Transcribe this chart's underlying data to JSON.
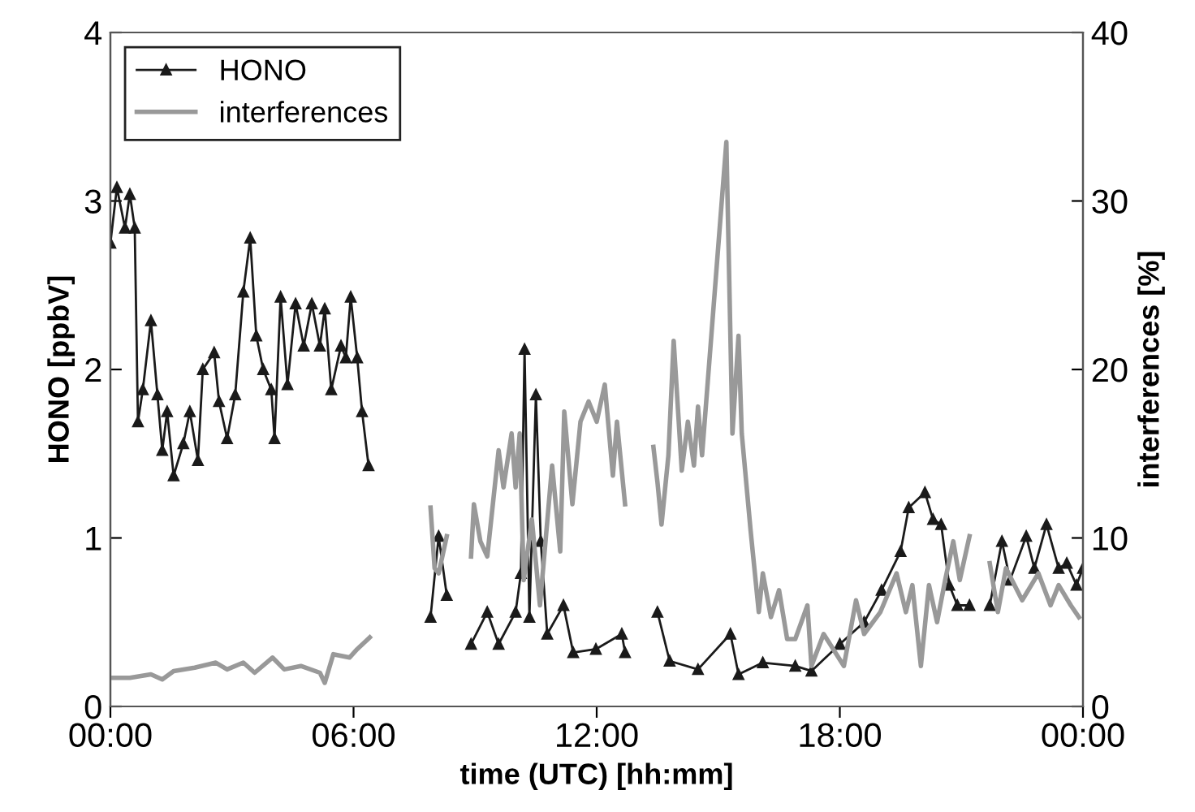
{
  "chart_data": {
    "type": "line",
    "xlabel": "time (UTC) [hh:mm]",
    "ylabel": "HONO [ppbV]",
    "y2label": "interferences [%]",
    "xlim": [
      0,
      24
    ],
    "xticks": [
      {
        "value": 0,
        "label": "00:00"
      },
      {
        "value": 6,
        "label": "06:00"
      },
      {
        "value": 12,
        "label": "12:00"
      },
      {
        "value": 18,
        "label": "18:00"
      },
      {
        "value": 24,
        "label": "00:00"
      }
    ],
    "ylim": [
      0,
      4
    ],
    "yticks": [
      0,
      1,
      2,
      3,
      4
    ],
    "y2lim": [
      0,
      40
    ],
    "y2ticks": [
      0,
      10,
      20,
      30,
      40
    ],
    "legend": "top left",
    "grid": false,
    "series": [
      {
        "name": "HONO",
        "color": "#1a1a1a",
        "marker": "triangle",
        "x": [
          0,
          0.16,
          0.36,
          0.48,
          0.6,
          0.68,
          0.8,
          1.0,
          1.16,
          1.28,
          1.4,
          1.56,
          1.8,
          1.96,
          2.16,
          2.28,
          2.56,
          2.68,
          2.88,
          3.08,
          3.28,
          3.45,
          3.6,
          3.77,
          3.97,
          4.05,
          4.2,
          4.37,
          4.57,
          4.77,
          4.97,
          5.17,
          5.29,
          5.45,
          5.69,
          5.81,
          5.93,
          6.09,
          6.21,
          6.37,
          7.1,
          7.9,
          8.1,
          8.3,
          8.6,
          8.9,
          9.3,
          9.58,
          10.0,
          10.13,
          10.22,
          10.34,
          10.5,
          10.62,
          10.78,
          11.18,
          11.42,
          11.98,
          12.62,
          12.7,
          13.1,
          13.5,
          13.8,
          14.5,
          15.3,
          15.5,
          16.1,
          16.9,
          17.3,
          18.0,
          18.6,
          19.03,
          19.5,
          19.7,
          20.1,
          20.3,
          20.5,
          20.7,
          20.9,
          21.2,
          21.45,
          21.7,
          22.0,
          22.2,
          22.6,
          22.8,
          23.1,
          23.4,
          23.6,
          23.84,
          24
        ],
        "values": [
          2.75,
          3.08,
          2.84,
          3.04,
          2.84,
          1.69,
          1.88,
          2.29,
          1.85,
          1.52,
          1.75,
          1.37,
          1.56,
          1.75,
          1.46,
          2.0,
          2.1,
          1.81,
          1.59,
          1.85,
          2.46,
          2.78,
          2.2,
          2.0,
          1.88,
          1.59,
          2.43,
          1.91,
          2.39,
          2.14,
          2.39,
          2.14,
          2.36,
          1.88,
          2.14,
          2.07,
          2.43,
          2.07,
          1.75,
          1.43,
          null,
          0.53,
          1.01,
          0.66,
          null,
          0.37,
          0.56,
          0.37,
          0.56,
          0.79,
          2.12,
          0.53,
          1.85,
          0.98,
          0.43,
          0.6,
          0.32,
          0.34,
          0.43,
          0.32,
          null,
          0.56,
          0.27,
          0.22,
          0.43,
          0.19,
          0.26,
          0.24,
          0.21,
          0.37,
          0.5,
          0.69,
          0.92,
          1.18,
          1.27,
          1.11,
          1.08,
          0.72,
          0.6,
          0.6,
          null,
          0.6,
          0.98,
          0.75,
          1.01,
          0.82,
          1.08,
          0.82,
          0.85,
          0.72,
          0.82
        ]
      },
      {
        "name": "interferences",
        "color": "#999999",
        "axis": "y2",
        "marker": "none",
        "x": [
          0,
          0.48,
          1.0,
          1.28,
          1.56,
          2.08,
          2.6,
          2.88,
          3.28,
          3.56,
          4.0,
          4.29,
          4.7,
          5.17,
          5.29,
          5.5,
          5.9,
          6.09,
          6.4,
          7.1,
          7.9,
          8.0,
          8.1,
          8.3,
          8.6,
          8.9,
          8.97,
          9.13,
          9.3,
          9.58,
          9.7,
          9.9,
          10.0,
          10.1,
          10.2,
          10.4,
          10.6,
          10.9,
          11.1,
          11.2,
          11.4,
          11.6,
          11.8,
          12.0,
          12.2,
          12.4,
          12.5,
          12.7,
          13.05,
          13.4,
          13.5,
          13.6,
          13.77,
          13.9,
          14.1,
          14.25,
          14.4,
          14.5,
          14.6,
          15.2,
          15.35,
          15.5,
          15.58,
          15.8,
          16.0,
          16.1,
          16.3,
          16.5,
          16.7,
          16.9,
          17.2,
          17.3,
          17.6,
          18.1,
          18.4,
          18.6,
          19.0,
          19.4,
          19.63,
          19.79,
          20.0,
          20.2,
          20.4,
          20.6,
          20.8,
          20.96,
          21.2,
          21.45,
          21.7,
          21.9,
          22.1,
          22.5,
          22.9,
          23.2,
          23.4,
          23.7,
          23.9
        ],
        "values": [
          1.7,
          1.7,
          1.9,
          1.6,
          2.1,
          2.3,
          2.6,
          2.2,
          2.6,
          2.0,
          2.9,
          2.2,
          2.4,
          2.0,
          1.4,
          3.1,
          2.9,
          3.4,
          4.1,
          null,
          11.8,
          8.2,
          7.9,
          10.1,
          null,
          8.9,
          12.0,
          9.8,
          8.9,
          15.2,
          13.0,
          16.2,
          13.0,
          16.2,
          7.5,
          11.1,
          6.0,
          14.3,
          9.2,
          17.5,
          12.0,
          16.9,
          18.1,
          16.9,
          19.1,
          13.7,
          16.9,
          12.0,
          null,
          15.4,
          13.3,
          10.8,
          14.9,
          21.7,
          14.0,
          16.9,
          14.3,
          17.8,
          14.9,
          33.5,
          16.2,
          22.0,
          16.2,
          10.4,
          5.6,
          7.9,
          5.3,
          6.9,
          4.0,
          4.0,
          6.0,
          2.4,
          4.3,
          2.4,
          6.3,
          4.3,
          5.6,
          7.9,
          5.6,
          7.2,
          2.4,
          7.2,
          5.0,
          7.5,
          9.8,
          7.5,
          10.1,
          null,
          8.5,
          5.6,
          8.2,
          6.3,
          7.9,
          6.0,
          7.2,
          6.0,
          5.3
        ]
      }
    ]
  }
}
